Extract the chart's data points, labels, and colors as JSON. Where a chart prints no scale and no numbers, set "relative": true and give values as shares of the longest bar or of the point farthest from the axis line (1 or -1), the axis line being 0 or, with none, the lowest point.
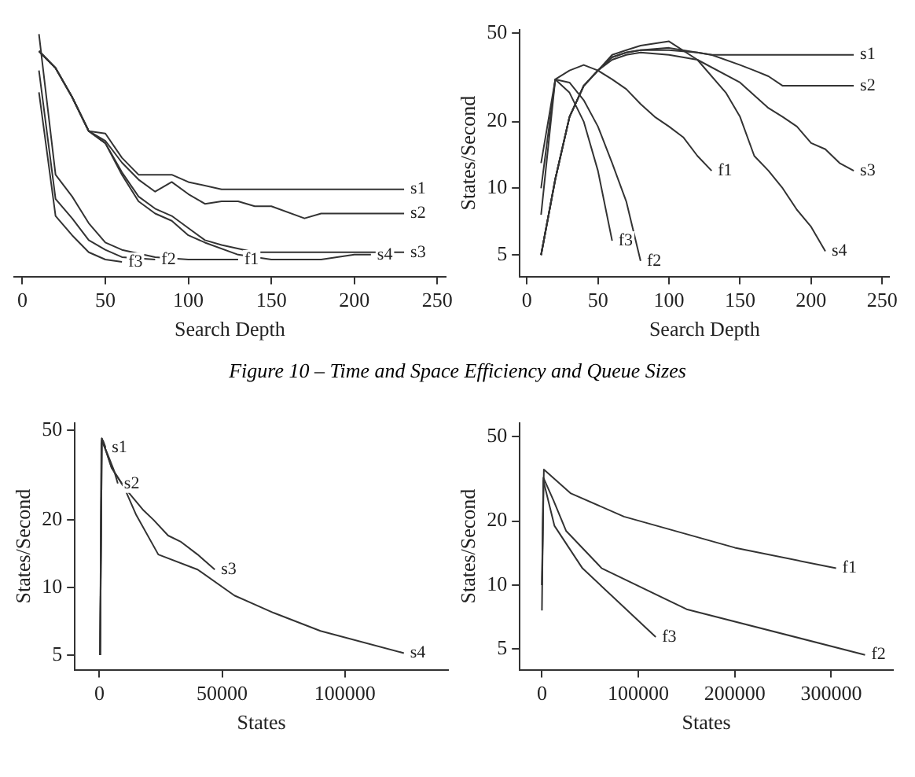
{
  "chart_data": [
    {
      "type": "line",
      "relative": true,
      "xlabel": "Search Depth",
      "xlim": [
        -5,
        255
      ],
      "xticks": [
        0,
        50,
        100,
        150,
        200,
        250
      ],
      "tick_labels": "x",
      "grid": false,
      "legend": false,
      "annotations": [
        "Figure 10 – Time and Space Efficiency and Queue Sizes"
      ],
      "series": [
        {
          "name": "s1",
          "color": "#333333",
          "x": [
            10,
            20,
            30,
            40,
            50,
            60,
            70,
            80,
            90,
            100,
            120,
            230
          ],
          "values": [
            0.93,
            0.86,
            0.74,
            0.6,
            0.59,
            0.49,
            0.42,
            0.42,
            0.42,
            0.39,
            0.36,
            0.36
          ]
        },
        {
          "name": "s2",
          "color": "#333333",
          "x": [
            10,
            20,
            30,
            40,
            50,
            60,
            70,
            80,
            90,
            100,
            110,
            120,
            130,
            140,
            150,
            170,
            180,
            230
          ],
          "values": [
            0.93,
            0.86,
            0.74,
            0.6,
            0.56,
            0.47,
            0.4,
            0.35,
            0.39,
            0.34,
            0.3,
            0.31,
            0.31,
            0.29,
            0.29,
            0.24,
            0.26,
            0.26
          ]
        },
        {
          "name": "s3",
          "color": "#333333",
          "x": [
            10,
            20,
            30,
            40,
            50,
            60,
            70,
            80,
            90,
            100,
            110,
            120,
            140,
            230
          ],
          "values": [
            0.93,
            0.86,
            0.74,
            0.6,
            0.55,
            0.43,
            0.33,
            0.28,
            0.25,
            0.2,
            0.15,
            0.13,
            0.1,
            0.1
          ]
        },
        {
          "name": "s4",
          "color": "#333333",
          "x": [
            10,
            20,
            30,
            40,
            50,
            60,
            70,
            80,
            90,
            100,
            110,
            130,
            150,
            180,
            200,
            210
          ],
          "values": [
            0.93,
            0.86,
            0.74,
            0.6,
            0.55,
            0.42,
            0.31,
            0.26,
            0.23,
            0.17,
            0.14,
            0.09,
            0.07,
            0.07,
            0.09,
            0.09
          ]
        },
        {
          "name": "f1",
          "color": "#333333",
          "x": [
            10,
            20,
            30,
            40,
            50,
            60,
            80,
            100,
            130
          ],
          "values": [
            1,
            0.42,
            0.33,
            0.22,
            0.14,
            0.11,
            0.08,
            0.07,
            0.07
          ]
        },
        {
          "name": "f2",
          "color": "#333333",
          "x": [
            10,
            20,
            30,
            40,
            50,
            60,
            80
          ],
          "values": [
            0.85,
            0.32,
            0.24,
            0.15,
            0.11,
            0.08,
            0.07
          ]
        },
        {
          "name": "f3",
          "color": "#333333",
          "x": [
            10,
            20,
            30,
            40,
            50,
            60
          ],
          "values": [
            0.76,
            0.25,
            0.17,
            0.1,
            0.07,
            0.06
          ]
        }
      ]
    },
    {
      "type": "line",
      "log": true,
      "xlabel": "Search Depth",
      "ylabel": "States/Second",
      "xlim": [
        -5,
        255
      ],
      "xticks": [
        0,
        50,
        100,
        150,
        200,
        250
      ],
      "ylim": [
        4,
        52
      ],
      "yticks": [
        5,
        10,
        20,
        50
      ],
      "grid": false,
      "legend": false,
      "series": [
        {
          "name": "s1",
          "color": "#333333",
          "x": [
            10,
            20,
            30,
            40,
            50,
            60,
            70,
            80,
            100,
            120,
            130,
            230
          ],
          "values": [
            5,
            11,
            21,
            29,
            34,
            39,
            41,
            42,
            42,
            41,
            40,
            40
          ]
        },
        {
          "name": "s2",
          "color": "#333333",
          "x": [
            10,
            20,
            30,
            40,
            50,
            60,
            70,
            80,
            100,
            130,
            150,
            160,
            170,
            180,
            190,
            230
          ],
          "values": [
            5,
            11,
            21,
            29,
            34,
            39,
            41,
            42,
            43,
            40,
            36,
            34,
            32,
            29,
            29,
            29
          ]
        },
        {
          "name": "s3",
          "color": "#333333",
          "x": [
            10,
            20,
            30,
            40,
            50,
            60,
            70,
            80,
            100,
            120,
            150,
            170,
            180,
            190,
            200,
            210,
            220,
            230
          ],
          "values": [
            5,
            11,
            21,
            29,
            34,
            38,
            40,
            41,
            40,
            38,
            30,
            23,
            21,
            19,
            16,
            15,
            13,
            12
          ]
        },
        {
          "name": "s4",
          "color": "#333333",
          "x": [
            10,
            20,
            30,
            40,
            50,
            60,
            70,
            80,
            100,
            120,
            140,
            150,
            160,
            170,
            180,
            190,
            200,
            210
          ],
          "values": [
            5,
            11,
            21,
            29,
            34,
            40,
            42,
            44,
            46,
            38,
            27,
            21,
            14,
            12,
            10,
            8,
            6.7,
            5.2
          ]
        },
        {
          "name": "f1",
          "color": "#333333",
          "x": [
            10,
            20,
            30,
            40,
            50,
            60,
            70,
            80,
            90,
            100,
            110,
            120,
            130
          ],
          "values": [
            13,
            31,
            34,
            36,
            34,
            31,
            28,
            24,
            21,
            19,
            17,
            14,
            12
          ]
        },
        {
          "name": "f2",
          "color": "#333333",
          "x": [
            10,
            20,
            30,
            40,
            50,
            60,
            70,
            80
          ],
          "values": [
            10,
            31,
            30,
            25,
            19,
            13,
            8.7,
            4.7
          ]
        },
        {
          "name": "f3",
          "color": "#333333",
          "x": [
            10,
            20,
            30,
            40,
            50,
            60
          ],
          "values": [
            7.6,
            31,
            27,
            20,
            12,
            5.8
          ]
        }
      ]
    },
    {
      "type": "line",
      "log": true,
      "xlabel": "States",
      "ylabel": "States/Second",
      "xlim": [
        -10000,
        142000
      ],
      "xticks": [
        0,
        50000,
        100000
      ],
      "ylim": [
        4.3,
        54
      ],
      "yticks": [
        5,
        10,
        20,
        50
      ],
      "grid": false,
      "legend": false,
      "series": [
        {
          "name": "s1",
          "color": "#333333",
          "x": [
            300,
            800,
            1500,
            2500
          ],
          "values": [
            5,
            44,
            45,
            42
          ]
        },
        {
          "name": "s2",
          "color": "#333333",
          "x": [
            300,
            900,
            3000,
            6000,
            7500
          ],
          "values": [
            5,
            45,
            40,
            33,
            29
          ]
        },
        {
          "name": "s3",
          "color": "#333333",
          "x": [
            300,
            1000,
            5000,
            10000,
            18000,
            22000,
            28000,
            33000,
            40000,
            47000
          ],
          "values": [
            5,
            46,
            34,
            28,
            22,
            20,
            17,
            16,
            14,
            12
          ]
        },
        {
          "name": "s4",
          "color": "#333333",
          "x": [
            300,
            1000,
            5000,
            10000,
            15000,
            24000,
            40000,
            55000,
            71000,
            90000,
            124000
          ],
          "values": [
            5,
            46,
            34,
            28,
            21,
            14,
            12,
            9.2,
            7.7,
            6.4,
            5.1
          ]
        }
      ]
    },
    {
      "type": "line",
      "log": true,
      "xlabel": "States",
      "ylabel": "States/Second",
      "xlim": [
        -23000,
        364000
      ],
      "xticks": [
        0,
        100000,
        200000,
        300000
      ],
      "ylim": [
        4,
        58
      ],
      "yticks": [
        5,
        10,
        20,
        50
      ],
      "grid": false,
      "legend": false,
      "series": [
        {
          "name": "f1",
          "color": "#333333",
          "x": [
            0,
            2000,
            30000,
            85000,
            200000,
            305000
          ],
          "values": [
            10,
            35,
            27,
            21,
            15,
            12
          ]
        },
        {
          "name": "f2",
          "color": "#333333",
          "x": [
            0,
            1500,
            12000,
            25000,
            62000,
            150000,
            335000
          ],
          "values": [
            10,
            32,
            25,
            18,
            12,
            7.7,
            4.7
          ]
        },
        {
          "name": "f3",
          "color": "#333333",
          "x": [
            0,
            1500,
            13000,
            42000,
            118000
          ],
          "values": [
            7.6,
            31,
            19,
            12,
            5.7
          ]
        }
      ]
    }
  ]
}
